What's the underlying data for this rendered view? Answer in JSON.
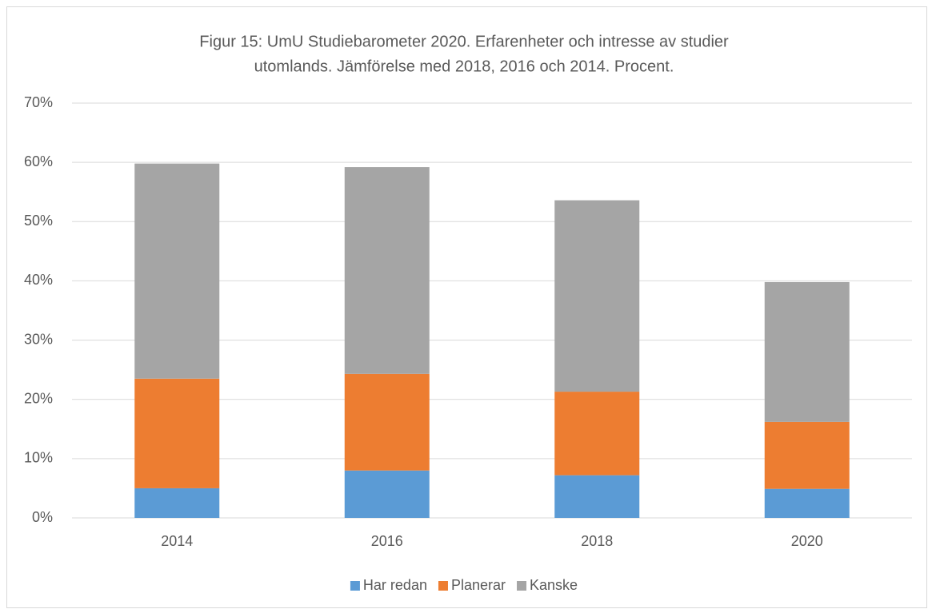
{
  "chart_data": {
    "type": "stacked_bar",
    "title": [
      "Figur 15: UmU Studiebarometer 2020. Erfarenheter och intresse av studier",
      "utomlands. Jämförelse med 2018, 2016 och 2014. Procent."
    ],
    "categories": [
      "2014",
      "2016",
      "2018",
      "2020"
    ],
    "series": [
      {
        "name": "Har redan",
        "color": "#5b9bd5",
        "values": [
          5.0,
          8.0,
          7.2,
          4.9
        ]
      },
      {
        "name": "Planerar",
        "color": "#ed7d31",
        "values": [
          18.5,
          16.3,
          14.1,
          11.3
        ]
      },
      {
        "name": "Kanske",
        "color": "#a5a5a5",
        "values": [
          36.3,
          34.9,
          32.3,
          23.6
        ]
      }
    ],
    "ylim": [
      0,
      70
    ],
    "yticks": [
      {
        "value": 0,
        "label": "0%"
      },
      {
        "value": 10,
        "label": "10%"
      },
      {
        "value": 20,
        "label": "20%"
      },
      {
        "value": 30,
        "label": "30%"
      },
      {
        "value": 40,
        "label": "40%"
      },
      {
        "value": 50,
        "label": "50%"
      },
      {
        "value": 60,
        "label": "60%"
      },
      {
        "value": 70,
        "label": "70%"
      }
    ],
    "grid": true,
    "legend": "bottom"
  }
}
